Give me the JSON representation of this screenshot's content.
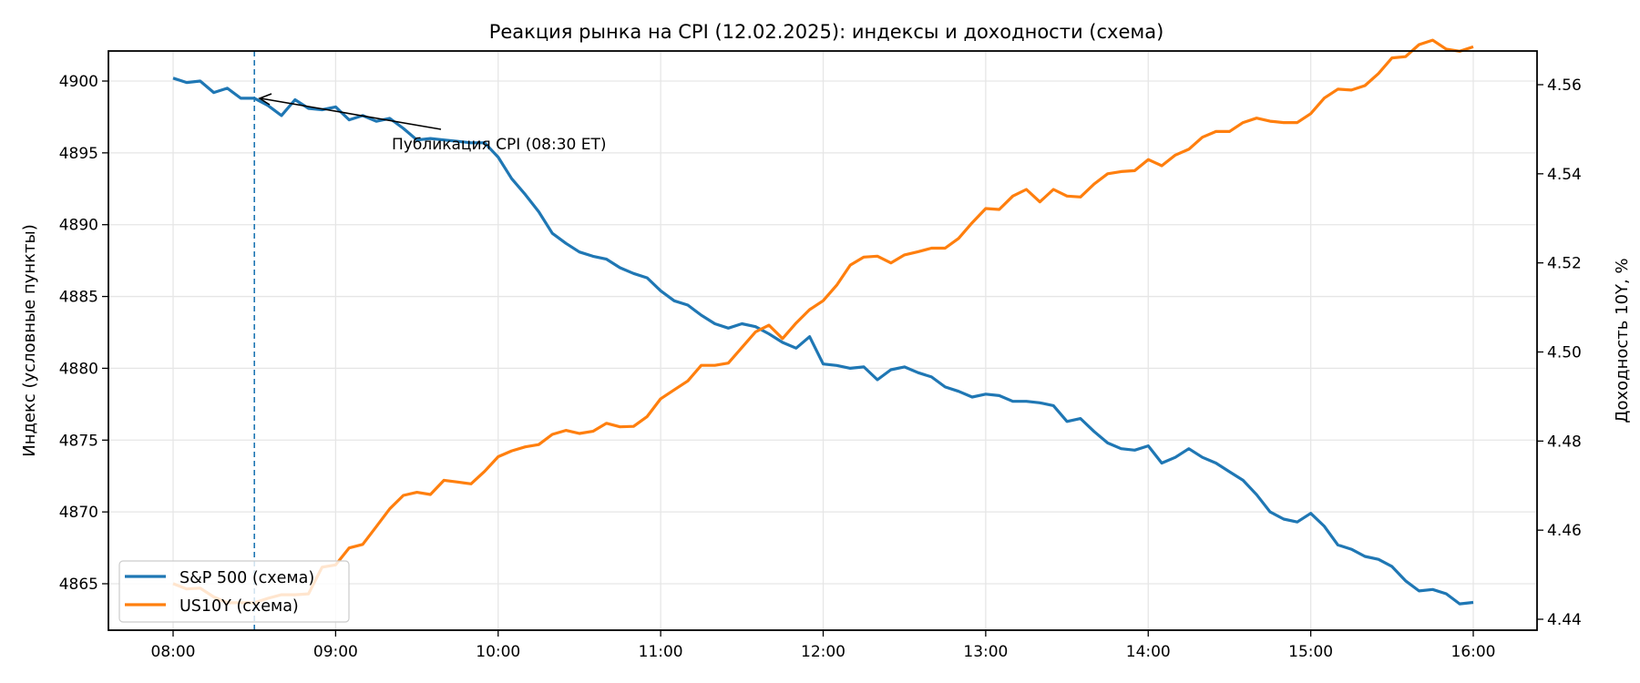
{
  "chart_data": {
    "type": "line",
    "title": "Реакция рынка на CPI (12.02.2025): индексы и доходности (схема)",
    "xlabel": "",
    "ylabel": "Индекс (условные пункты)",
    "ylabel_right": "Доходность 10Y, %",
    "x_ticks": [
      "08:00",
      "09:00",
      "10:00",
      "11:00",
      "12:00",
      "13:00",
      "14:00",
      "15:00",
      "16:00"
    ],
    "y_ticks_left": [
      4865,
      4870,
      4875,
      4880,
      4885,
      4890,
      4895,
      4900
    ],
    "y_ticks_right": [
      "4.44",
      "4.46",
      "4.48",
      "4.50",
      "4.52",
      "4.54",
      "4.56"
    ],
    "ylim_left": [
      4862.2,
      4902.2
    ],
    "ylim_right": [
      4.4375,
      4.5674
    ],
    "x_start": "08:00",
    "x_step_minutes": 5,
    "grid": true,
    "legend_position": "lower left",
    "annotation": {
      "text": "Публикация CPI (08:30 ET)",
      "event_time": "08:30",
      "event_line_style": "dashed"
    },
    "series": [
      {
        "name": "S&P 500 (схема)",
        "axis": "left",
        "color": "#1f77b4",
        "values": [
          4900.2,
          4899.9,
          4900.0,
          4899.2,
          4899.5,
          4898.8,
          4898.8,
          4898.3,
          4897.6,
          4898.7,
          4898.1,
          4898.0,
          4898.2,
          4897.3,
          4897.6,
          4897.2,
          4897.4,
          4896.7,
          4895.9,
          4896.0,
          4895.9,
          4895.8,
          4895.7,
          4895.7,
          4894.7,
          4893.2,
          4892.1,
          4890.9,
          4889.4,
          4888.7,
          4888.1,
          4887.8,
          4887.6,
          4887.0,
          4886.6,
          4886.3,
          4885.4,
          4884.7,
          4884.4,
          4883.7,
          4883.1,
          4882.8,
          4883.1,
          4882.9,
          4882.4,
          4881.8,
          4881.4,
          4882.2,
          4880.3,
          4880.2,
          4880.0,
          4880.1,
          4879.2,
          4879.9,
          4880.1,
          4879.7,
          4879.4,
          4878.7,
          4878.4,
          4878.0,
          4878.2,
          4878.1,
          4877.7,
          4877.7,
          4877.6,
          4877.4,
          4876.3,
          4876.5,
          4875.6,
          4874.8,
          4874.4,
          4874.3,
          4874.6,
          4873.4,
          4873.8,
          4874.4,
          4873.8,
          4873.4,
          4872.8,
          4872.2,
          4871.2,
          4870.0,
          4869.5,
          4869.3,
          4869.9,
          4869.0,
          4867.7,
          4867.4,
          4866.9,
          4866.7,
          4866.2,
          4865.2,
          4864.5,
          4864.6,
          4864.3,
          4863.6,
          4863.7
        ]
      },
      {
        "name": "US10Y (схема)",
        "axis": "right",
        "color": "#ff7f0e",
        "values": [
          4.448,
          4.4468,
          4.447,
          4.445,
          4.4437,
          4.4437,
          4.4437,
          4.4447,
          4.4455,
          4.4455,
          4.4457,
          4.4517,
          4.4522,
          4.456,
          4.4568,
          4.4608,
          4.4648,
          4.4678,
          4.4685,
          4.468,
          4.4712,
          4.4708,
          4.4704,
          4.4732,
          4.4765,
          4.4778,
          4.4787,
          4.4792,
          4.4815,
          4.4824,
          4.4817,
          4.4822,
          4.484,
          4.4832,
          4.4833,
          4.4855,
          4.4895,
          4.4915,
          4.4935,
          4.497,
          4.497,
          4.4975,
          4.501,
          4.5045,
          4.506,
          4.503,
          4.5065,
          4.5095,
          4.5115,
          4.515,
          4.5195,
          4.5213,
          4.5215,
          4.52,
          4.5218,
          4.5225,
          4.5233,
          4.5233,
          4.5255,
          4.529,
          4.5322,
          4.532,
          4.535,
          4.5365,
          4.5337,
          4.5365,
          4.535,
          4.5348,
          4.5377,
          4.54,
          4.5405,
          4.5407,
          4.5432,
          4.5418,
          4.5442,
          4.5455,
          4.5482,
          4.5495,
          4.5495,
          4.5515,
          4.5525,
          4.5518,
          4.5515,
          4.5515,
          4.5535,
          4.557,
          4.559,
          4.5588,
          4.5598,
          4.5625,
          4.566,
          4.5663,
          4.569,
          4.57,
          4.568,
          4.5675,
          4.5685
        ]
      }
    ]
  },
  "colors": {
    "sp500": "#1f77b4",
    "us10y": "#ff7f0e",
    "grid": "#e6e6e6",
    "axis": "#000000"
  }
}
